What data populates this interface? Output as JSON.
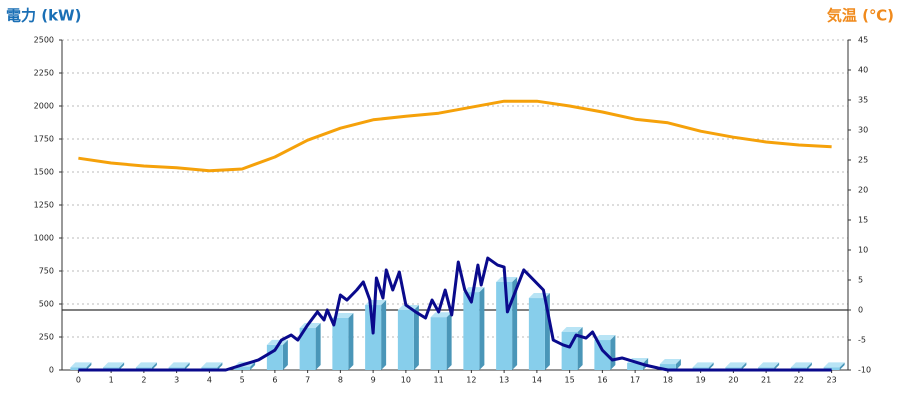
{
  "chart_data": {
    "type": "combo",
    "y_title": "電力 (kW)",
    "y2_title": "気温 (℃)",
    "categories": [
      "0",
      "1",
      "2",
      "3",
      "4",
      "5",
      "6",
      "7",
      "8",
      "9",
      "10",
      "11",
      "12",
      "13",
      "14",
      "15",
      "16",
      "17",
      "18",
      "19",
      "20",
      "21",
      "22",
      "23"
    ],
    "ylim": [
      0,
      2500
    ],
    "yticks": [
      0,
      250,
      500,
      750,
      1000,
      1250,
      1500,
      1750,
      2000,
      2250,
      2500
    ],
    "y2lim": [
      -10,
      45
    ],
    "y2ticks": [
      -10,
      -5,
      0,
      5,
      10,
      15,
      20,
      25,
      30,
      35,
      40,
      45
    ],
    "grid": true,
    "series": [
      {
        "type": "bar",
        "color": "#87ceeb",
        "values": [
          20,
          20,
          20,
          20,
          20,
          25,
          190,
          318,
          394,
          492,
          455,
          400,
          590,
          667,
          545,
          288,
          227,
          53,
          45,
          20,
          20,
          20,
          20,
          20
        ]
      },
      {
        "type": "line",
        "axis": "y2",
        "color": "#f5a10a",
        "values": [
          25.3,
          24.5,
          24,
          23.7,
          23.2,
          23.5,
          25.5,
          28.3,
          30.3,
          31.7,
          32.3,
          32.8,
          33.8,
          34.8,
          34.8,
          34,
          33,
          31.8,
          31.2,
          29.8,
          28.8,
          28,
          27.5,
          27.2
        ]
      },
      {
        "type": "line",
        "color": "#0a0a8c",
        "x": [
          0,
          1,
          2,
          3,
          4,
          4.5,
          5,
          5.5,
          6,
          6.2,
          6.5,
          6.7,
          7,
          7.3,
          7.5,
          7.6,
          7.8,
          8,
          8.2,
          8.5,
          8.7,
          8.9,
          9,
          9.1,
          9.3,
          9.4,
          9.6,
          9.8,
          10,
          10.3,
          10.6,
          10.8,
          11,
          11.2,
          11.4,
          11.6,
          11.8,
          12,
          12.2,
          12.3,
          12.5,
          12.8,
          13,
          13.1,
          13.3,
          13.6,
          13.9,
          14.2,
          14.5,
          14.8,
          15,
          15.2,
          15.5,
          15.7,
          16,
          16.3,
          16.6,
          17,
          17.3,
          17.7,
          18,
          19,
          20,
          21,
          22,
          23
        ],
        "values": [
          0,
          0,
          0,
          0,
          0,
          0,
          38,
          76,
          150,
          227,
          265,
          227,
          341,
          440,
          379,
          455,
          341,
          568,
          530,
          606,
          667,
          530,
          280,
          697,
          545,
          758,
          606,
          742,
          492,
          440,
          394,
          530,
          440,
          606,
          417,
          818,
          606,
          515,
          795,
          644,
          848,
          795,
          780,
          440,
          568,
          758,
          682,
          606,
          227,
          190,
          174,
          265,
          242,
          288,
          150,
          76,
          91,
          61,
          38,
          15,
          0,
          0,
          0,
          0,
          0,
          0
        ]
      }
    ]
  }
}
